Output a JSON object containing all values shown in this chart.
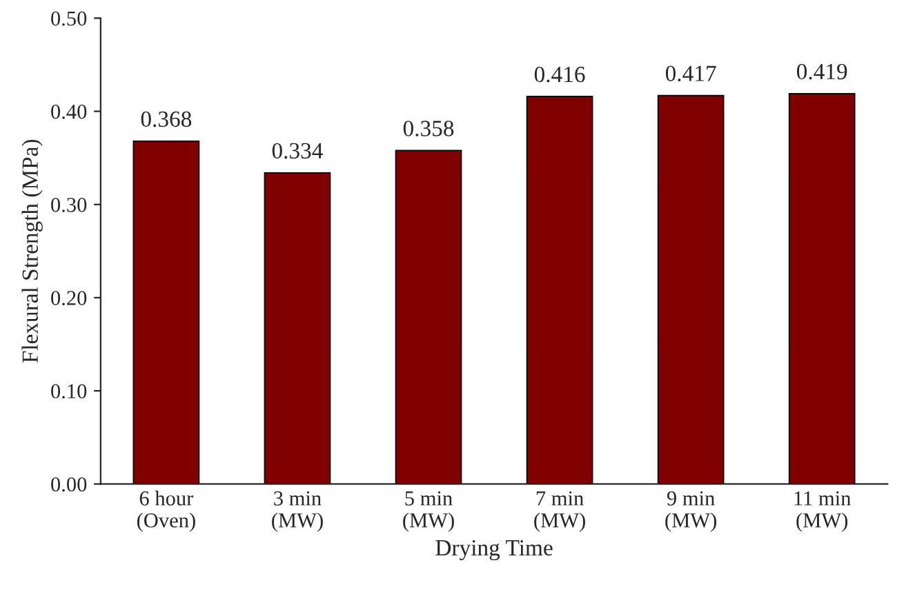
{
  "chart_data": {
    "type": "bar",
    "xlabel": "Drying Time",
    "ylabel": "Flexural Strength (MPa)",
    "categories": [
      "6 hour\n(Oven)",
      "3 min\n(MW)",
      "5 min\n(MW)",
      "7 min\n(MW)",
      "9 min\n(MW)",
      "11 min\n(MW)"
    ],
    "values": [
      0.368,
      0.334,
      0.358,
      0.416,
      0.417,
      0.419
    ],
    "colors": [
      "#800000",
      "#800000",
      "#800000",
      "#800000",
      "#800000",
      "#800000"
    ],
    "ylim": [
      0,
      0.5
    ],
    "yticks": [
      {
        "value": 0,
        "label": "0.00"
      },
      {
        "value": 0.1,
        "label": "0.10"
      },
      {
        "value": 0.2,
        "label": "0.20"
      },
      {
        "value": 0.3,
        "label": "0.30"
      },
      {
        "value": 0.4,
        "label": "0.40"
      },
      {
        "value": 0.5,
        "label": "0.50"
      }
    ],
    "data_labels": true,
    "grid": false,
    "legend": false
  }
}
